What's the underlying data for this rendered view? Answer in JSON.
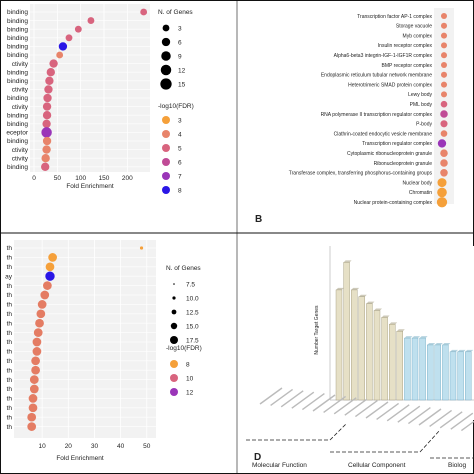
{
  "panels": {
    "a": {
      "x_axis_label": "Fold Enrichment",
      "x_ticks": [
        "0",
        "50",
        "100",
        "150",
        "200"
      ],
      "row_labels": [
        "binding",
        "binding",
        "binding",
        "binding",
        "binding",
        "binding",
        "ctivity",
        "binding",
        "binding",
        "ctivity",
        "binding",
        "ctivity",
        "binding",
        "binding",
        "eceptor",
        "binding",
        "ctivity",
        "ctivity",
        "binding"
      ],
      "legend_size_title": "N. of Genes",
      "legend_size_values": [
        "3",
        "6",
        "9",
        "12",
        "15"
      ],
      "legend_color_title": "-log10(FDR)",
      "legend_color_values": [
        "3",
        "4",
        "5",
        "6",
        "7",
        "8"
      ],
      "colors": [
        "#f5a03a",
        "#e8846a",
        "#d8647e",
        "#c04b96",
        "#9a35b8",
        "#2a16e6"
      ]
    },
    "b": {
      "panel_letter": "B",
      "row_labels": [
        "Transcription factor AP-1 complex",
        "Storage vacuole",
        "Myb complex",
        "Insulin receptor complex",
        "Alpha6-beta3 integrin-IGF-1-IGF1R complex",
        "BMP receptor complex",
        "Endoplasmic reticulum tubular network membrane",
        "Heterotrimeric SMAD protein complex",
        "Lewy body",
        "PML body",
        "RNA polymerase II transcription regulator complex",
        "P-body",
        "Clathrin-coated endocytic vesicle membrane",
        "Transcription regulator complex",
        "Cytoplasmic ribonucleoprotein granule",
        "Ribonucleoprotein granule",
        "Transferase complex, transferring phosphorus-containing groups",
        "Nuclear body",
        "Chromatin",
        "Nuclear protein-containing complex"
      ]
    },
    "c": {
      "x_axis_label": "Fold Enrichment",
      "x_ticks": [
        "10",
        "20",
        "30",
        "40",
        "50"
      ],
      "row_labels": [
        "th",
        "th",
        "th",
        "ay",
        "th",
        "th",
        "th",
        "th",
        "th",
        "th",
        "th",
        "th",
        "th",
        "th",
        "th",
        "th",
        "th",
        "th",
        "th",
        "th"
      ],
      "legend_size_title": "N. of Genes",
      "legend_size_values": [
        "7.5",
        "10.0",
        "12.5",
        "15.0",
        "17.5"
      ],
      "legend_color_title": "-log10(FDR)",
      "legend_color_values": [
        "8",
        "10",
        "12"
      ],
      "colors": [
        "#f5a03a",
        "#d8647e",
        "#9a35b8",
        "#2a16e6"
      ]
    },
    "d": {
      "panel_letter": "D",
      "y_axis_label": "Number Target Genes",
      "groups": [
        "Molecular Function",
        "Cellular Component",
        "Biolog"
      ]
    }
  },
  "chart_data": [
    {
      "type": "scatter",
      "panel": "A",
      "xlabel": "Fold Enrichment",
      "xlim": [
        0,
        240
      ],
      "categories": [
        "binding",
        "binding",
        "binding",
        "binding",
        "binding",
        "binding",
        "ctivity",
        "binding",
        "binding",
        "ctivity",
        "binding",
        "ctivity",
        "binding",
        "binding",
        "eceptor",
        "binding",
        "ctivity",
        "ctivity",
        "binding"
      ],
      "x": [
        235,
        122,
        95,
        75,
        62,
        55,
        42,
        36,
        33,
        31,
        29,
        28,
        28,
        27,
        27,
        28,
        27,
        25,
        24
      ],
      "fdr_log10": [
        5,
        5,
        5,
        5,
        8,
        4,
        5,
        5,
        5,
        5,
        5,
        5,
        5,
        5,
        7,
        4,
        4,
        4,
        5
      ],
      "n_genes": [
        3,
        3,
        3,
        3,
        6,
        3,
        6,
        6,
        6,
        6,
        6,
        6,
        6,
        6,
        12,
        6,
        6,
        6,
        6
      ]
    },
    {
      "type": "scatter",
      "panel": "B",
      "categories": [
        "Transcription factor AP-1 complex",
        "Storage vacuole",
        "Myb complex",
        "Insulin receptor complex",
        "Alpha6-beta3 integrin-IGF-1-IGF1R complex",
        "BMP receptor complex",
        "Endoplasmic reticulum tubular network membrane",
        "Heterotrimeric SMAD protein complex",
        "Lewy body",
        "PML body",
        "RNA polymerase II transcription regulator complex",
        "P-body",
        "Clathrin-coated endocytic vesicle membrane",
        "Transcription regulator complex",
        "Cytoplasmic ribonucleoprotein granule",
        "Ribonucleoprotein granule",
        "Transferase complex, transferring phosphorus-containing groups",
        "Nuclear body",
        "Chromatin",
        "Nuclear protein-containing complex"
      ],
      "fdr_log10": [
        4,
        4,
        4,
        4,
        4,
        4,
        4,
        4,
        4,
        5,
        6,
        5,
        4,
        7,
        4,
        4,
        4,
        3,
        3,
        3
      ],
      "n_genes": [
        3,
        3,
        3,
        3,
        3,
        3,
        3,
        3,
        3,
        4,
        6,
        5,
        4,
        8,
        6,
        6,
        6,
        10,
        12,
        14
      ]
    },
    {
      "type": "scatter",
      "panel": "C",
      "xlabel": "Fold Enrichment",
      "xlim": [
        0,
        52
      ],
      "categories": [
        "th",
        "th",
        "th",
        "ay",
        "th",
        "th",
        "th",
        "th",
        "th",
        "th",
        "th",
        "th",
        "th",
        "th",
        "th",
        "th",
        "th",
        "th",
        "th",
        "th"
      ],
      "x": [
        48,
        14,
        13,
        13,
        12,
        11,
        10,
        9.5,
        9,
        8.5,
        8,
        8,
        7.5,
        7.5,
        7,
        7,
        6.5,
        6.5,
        6,
        6
      ],
      "fdr_log10": [
        8,
        8,
        8,
        13,
        9,
        9,
        9,
        9,
        9,
        9,
        9,
        9,
        9,
        9,
        9,
        9,
        9,
        9,
        9,
        9
      ],
      "n_genes": [
        7.5,
        12.5,
        12.5,
        15,
        12.5,
        12.5,
        12.5,
        12.5,
        12.5,
        12.5,
        12.5,
        12.5,
        12.5,
        12.5,
        12.5,
        12.5,
        12.5,
        12.5,
        12.5,
        12.5
      ]
    },
    {
      "type": "bar",
      "panel": "D",
      "ylabel": "Number Target Genes",
      "group_labels": [
        "Molecular Function",
        "Cellular Component",
        "Biolog"
      ],
      "series": [
        {
          "values": [
            8,
            10,
            8,
            7.5,
            7,
            6.5,
            6,
            5.5,
            5
          ]
        },
        {
          "values": [
            4.5,
            4.5,
            4.5,
            4,
            4,
            4,
            3.5,
            3.5,
            3.5
          ]
        }
      ]
    }
  ]
}
